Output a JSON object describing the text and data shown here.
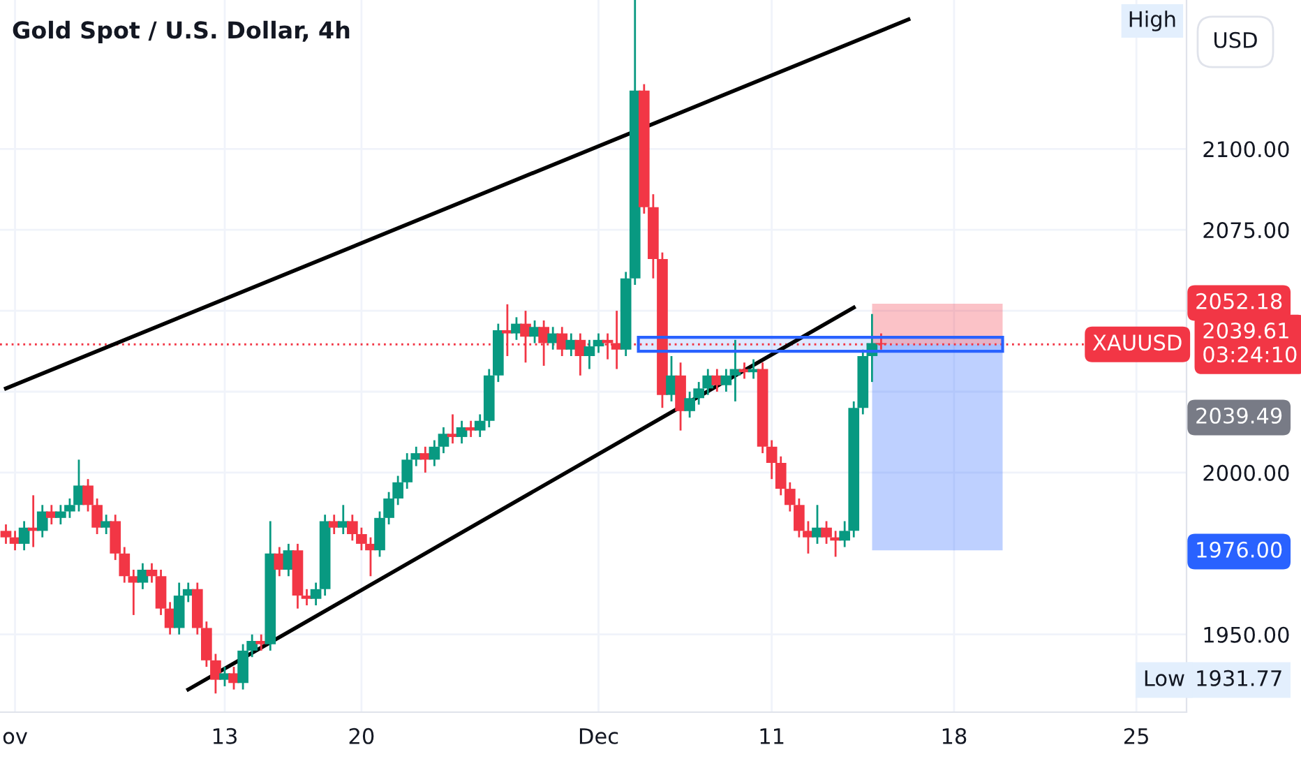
{
  "chart_data": {
    "type": "candlestick",
    "title": "Gold Spot / U.S. Dollar, 4h",
    "categories": [
      null,
      "ov",
      null,
      null,
      null,
      null,
      null,
      null,
      null,
      null,
      null,
      null,
      null,
      null,
      null,
      null,
      null,
      null,
      null,
      null,
      null,
      null,
      null,
      null,
      "13",
      null,
      null,
      null,
      null,
      null,
      null,
      null,
      null,
      null,
      null,
      null,
      null,
      null,
      null,
      "20",
      null,
      null,
      null,
      null,
      null,
      null,
      null,
      null,
      null,
      null,
      null,
      null,
      null,
      null,
      null,
      null,
      null,
      null,
      null,
      null,
      null,
      null,
      null,
      null,
      null,
      "Dec",
      null,
      null,
      null,
      null,
      null,
      null,
      null,
      null,
      null,
      null,
      null,
      null,
      null,
      null,
      null,
      null,
      null,
      null,
      "11",
      null,
      null,
      null,
      null,
      null,
      null,
      null,
      null,
      null,
      null,
      null,
      null,
      null,
      null,
      null,
      null,
      null,
      null,
      null,
      "18",
      null,
      null,
      null,
      null,
      null,
      null,
      null,
      null,
      null,
      null,
      null,
      null,
      null,
      null,
      null,
      null,
      null,
      null,
      null,
      "25",
      null,
      null,
      null,
      null,
      null
    ],
    "ohlc": [
      [
        1982,
        1984,
        1978,
        1980
      ],
      [
        1980,
        1982,
        1976,
        1978
      ],
      [
        1978,
        1985,
        1976,
        1983
      ],
      [
        1983,
        1993,
        1977,
        1982
      ],
      [
        1982,
        1990,
        1980,
        1988
      ],
      [
        1988,
        1990,
        1984,
        1986
      ],
      [
        1986,
        1990,
        1984,
        1988
      ],
      [
        1988,
        1992,
        1986,
        1990
      ],
      [
        1990,
        2004,
        1988,
        1996
      ],
      [
        1996,
        1998,
        1988,
        1990
      ],
      [
        1990,
        1992,
        1981,
        1983
      ],
      [
        1983,
        1987,
        1981,
        1985
      ],
      [
        1985,
        1987,
        1973,
        1975
      ],
      [
        1975,
        1977,
        1966,
        1968
      ],
      [
        1968,
        1970,
        1956,
        1966
      ],
      [
        1966,
        1972,
        1964,
        1970
      ],
      [
        1970,
        1972,
        1966,
        1968
      ],
      [
        1968,
        1970,
        1956,
        1958
      ],
      [
        1958,
        1960,
        1950,
        1952
      ],
      [
        1952,
        1966,
        1950,
        1962
      ],
      [
        1962,
        1966,
        1960,
        1964
      ],
      [
        1964,
        1966,
        1950,
        1952
      ],
      [
        1952,
        1954,
        1940,
        1942
      ],
      [
        1942,
        1944,
        1931.77,
        1936
      ],
      [
        1936,
        1940,
        1934,
        1938
      ],
      [
        1938,
        1940,
        1933,
        1935
      ],
      [
        1935,
        1947,
        1933,
        1945
      ],
      [
        1945,
        1950,
        1943,
        1948
      ],
      [
        1948,
        1950,
        1945,
        1947
      ],
      [
        1947,
        1985,
        1945,
        1975
      ],
      [
        1975,
        1977,
        1968,
        1970
      ],
      [
        1970,
        1978,
        1968,
        1976
      ],
      [
        1976,
        1978,
        1958,
        1962
      ],
      [
        1962,
        1964,
        1959,
        1961
      ],
      [
        1961,
        1966,
        1959,
        1964
      ],
      [
        1964,
        1987,
        1962,
        1985
      ],
      [
        1985,
        1987,
        1981,
        1983
      ],
      [
        1983,
        1990,
        1981,
        1985
      ],
      [
        1985,
        1987,
        1979,
        1981
      ],
      [
        1981,
        1983,
        1976,
        1978
      ],
      [
        1978,
        1980,
        1968,
        1976
      ],
      [
        1976,
        1988,
        1974,
        1986
      ],
      [
        1986,
        1994,
        1984,
        1992
      ],
      [
        1992,
        1999,
        1990,
        1997
      ],
      [
        1997,
        2006,
        1995,
        2004
      ],
      [
        2004,
        2008,
        2002,
        2006
      ],
      [
        2006,
        2008,
        2000,
        2004
      ],
      [
        2004,
        2010,
        2002,
        2008
      ],
      [
        2008,
        2014,
        2006,
        2012
      ],
      [
        2012,
        2018,
        2009,
        2011
      ],
      [
        2011,
        2016,
        2009,
        2014
      ],
      [
        2014,
        2016,
        2011,
        2013
      ],
      [
        2013,
        2018,
        2011,
        2016
      ],
      [
        2016,
        2032,
        2014,
        2030
      ],
      [
        2030,
        2046,
        2028,
        2044
      ],
      [
        2044,
        2052,
        2036,
        2043
      ],
      [
        2043,
        2048,
        2041,
        2046
      ],
      [
        2046,
        2050,
        2034,
        2042
      ],
      [
        2042,
        2047,
        2040,
        2045
      ],
      [
        2045,
        2047,
        2033,
        2040
      ],
      [
        2040,
        2045,
        2038,
        2043
      ],
      [
        2043,
        2045,
        2036,
        2038
      ],
      [
        2038,
        2043,
        2036,
        2041
      ],
      [
        2041,
        2043,
        2030,
        2036
      ],
      [
        2036,
        2041,
        2032,
        2039
      ],
      [
        2039,
        2043,
        2037,
        2041
      ],
      [
        2041,
        2043,
        2035,
        2040
      ],
      [
        2040,
        2050,
        2032,
        2038
      ],
      [
        2038,
        2062,
        2036,
        2060
      ],
      [
        2060,
        2146,
        2058,
        2118
      ],
      [
        2118,
        2120,
        2080,
        2082
      ],
      [
        2082,
        2086,
        2060,
        2066
      ],
      [
        2066,
        2068,
        2020,
        2024
      ],
      [
        2024,
        2036,
        2022,
        2030
      ],
      [
        2030,
        2034,
        2013,
        2019
      ],
      [
        2019,
        2025,
        2017,
        2023
      ],
      [
        2023,
        2028,
        2021,
        2026
      ],
      [
        2026,
        2032,
        2024,
        2030
      ],
      [
        2030,
        2032,
        2025,
        2027
      ],
      [
        2027,
        2032,
        2025,
        2030
      ],
      [
        2030,
        2041,
        2022,
        2032
      ],
      [
        2032,
        2034,
        2029,
        2031
      ],
      [
        2031,
        2035,
        2029,
        2032
      ],
      [
        2032,
        2034,
        2006,
        2008
      ],
      [
        2008,
        2010,
        1998,
        2003
      ],
      [
        2003,
        2005,
        1993,
        1995
      ],
      [
        1995,
        1997,
        1988,
        1990
      ],
      [
        1990,
        1992,
        1980,
        1982
      ],
      [
        1982,
        1985,
        1975,
        1980
      ],
      [
        1980,
        1990,
        1978,
        1983
      ],
      [
        1983,
        1985,
        1978,
        1980
      ],
      [
        1980,
        1982,
        1974,
        1979
      ],
      [
        1979,
        1985,
        1977,
        1982
      ],
      [
        1982,
        2022,
        1980,
        2020
      ],
      [
        2020,
        2038,
        2018,
        2036
      ],
      [
        2036,
        2049,
        2028,
        2040
      ],
      [
        2040,
        2043,
        2038,
        2039.61
      ],
      null,
      null,
      null,
      null,
      null,
      null,
      null,
      null,
      null,
      null,
      null,
      null,
      null,
      null,
      null,
      null,
      null,
      null,
      null,
      null,
      null,
      null,
      null,
      null,
      null,
      null,
      null,
      null,
      null,
      null,
      null,
      null,
      null
    ],
    "series": [
      {
        "type": "line",
        "color": "#000000",
        "values": [
          2026,
          null,
          null,
          null,
          null,
          null,
          null,
          null,
          null,
          null,
          null,
          null,
          null,
          null,
          null,
          null,
          null,
          null,
          null,
          null,
          null,
          null,
          null,
          null,
          null,
          null,
          null,
          null,
          null,
          null,
          null,
          null,
          null,
          null,
          null,
          null,
          null,
          null,
          null,
          null,
          null,
          null,
          null,
          null,
          null,
          null,
          null,
          null,
          null,
          null,
          null,
          null,
          null,
          null,
          null,
          null,
          null,
          null,
          null,
          null,
          null,
          null,
          null,
          null,
          null,
          null,
          null,
          null,
          null,
          null,
          null,
          null,
          null,
          null,
          null,
          null,
          null,
          null,
          null,
          null,
          null,
          null,
          null,
          null,
          null,
          null,
          null,
          null,
          null,
          null,
          null,
          null,
          null,
          null,
          null,
          null,
          null,
          null,
          null,
          2140,
          null,
          null,
          null,
          null,
          null,
          null,
          null,
          null,
          null,
          null,
          null,
          null,
          null,
          null,
          null,
          null,
          null,
          null,
          null,
          null,
          null,
          null,
          null,
          null,
          null,
          null,
          null,
          null,
          null,
          null
        ]
      },
      {
        "type": "line",
        "color": "#000000",
        "values": [
          null,
          null,
          null,
          null,
          null,
          null,
          null,
          null,
          null,
          null,
          null,
          null,
          null,
          null,
          null,
          null,
          null,
          null,
          null,
          null,
          1933,
          null,
          null,
          null,
          null,
          null,
          null,
          null,
          null,
          null,
          null,
          null,
          null,
          null,
          null,
          null,
          null,
          null,
          null,
          null,
          null,
          null,
          null,
          null,
          null,
          null,
          null,
          null,
          null,
          null,
          null,
          null,
          null,
          null,
          null,
          null,
          null,
          null,
          null,
          null,
          null,
          null,
          null,
          null,
          null,
          null,
          null,
          null,
          null,
          null,
          null,
          null,
          null,
          null,
          null,
          null,
          null,
          null,
          null,
          null,
          null,
          null,
          null,
          null,
          null,
          null,
          null,
          null,
          null,
          null,
          null,
          null,
          null,
          2051,
          null,
          null,
          null,
          null,
          null,
          null,
          null,
          null,
          null,
          null,
          null,
          null,
          null,
          null,
          null,
          null,
          null,
          null,
          null,
          null,
          null,
          null,
          null,
          null,
          null,
          null,
          null,
          null,
          null,
          null,
          null,
          null,
          null,
          null,
          null,
          null
        ]
      }
    ],
    "ylim": [
      1926,
      2146
    ],
    "yticks": [
      {
        "value": 1950,
        "label": "1950.00"
      },
      {
        "value": 2000,
        "label": "2000.00"
      },
      {
        "value": 2025,
        "label": null
      },
      {
        "value": 2050,
        "label": null
      },
      {
        "value": 2075,
        "label": "2075.00"
      },
      {
        "value": 2100,
        "label": "2100.00"
      }
    ],
    "ref_lines": [
      {
        "axis": "y",
        "value": 2039.61,
        "label": "2039.61\n03:24:10",
        "color": "#f23645",
        "line_style": "dotted"
      }
    ],
    "bands": [
      {
        "axis": "y",
        "from": 2037.5,
        "to": 2041.8,
        "color": "#2962ff"
      },
      {
        "axis": "y",
        "from": 2052.18,
        "to": 2039.61,
        "color": "#f23645"
      },
      {
        "axis": "y",
        "from": 1976,
        "to": 2039.61,
        "color": "#2962ff"
      }
    ],
    "annotations": [
      "High",
      "USD",
      {
        "text": "XAUUSD",
        "y": 2039.61
      },
      "2039.49",
      "1931.77",
      "Low",
      "2052.18",
      "1976.00"
    ],
    "grid": true,
    "legend": false
  }
}
